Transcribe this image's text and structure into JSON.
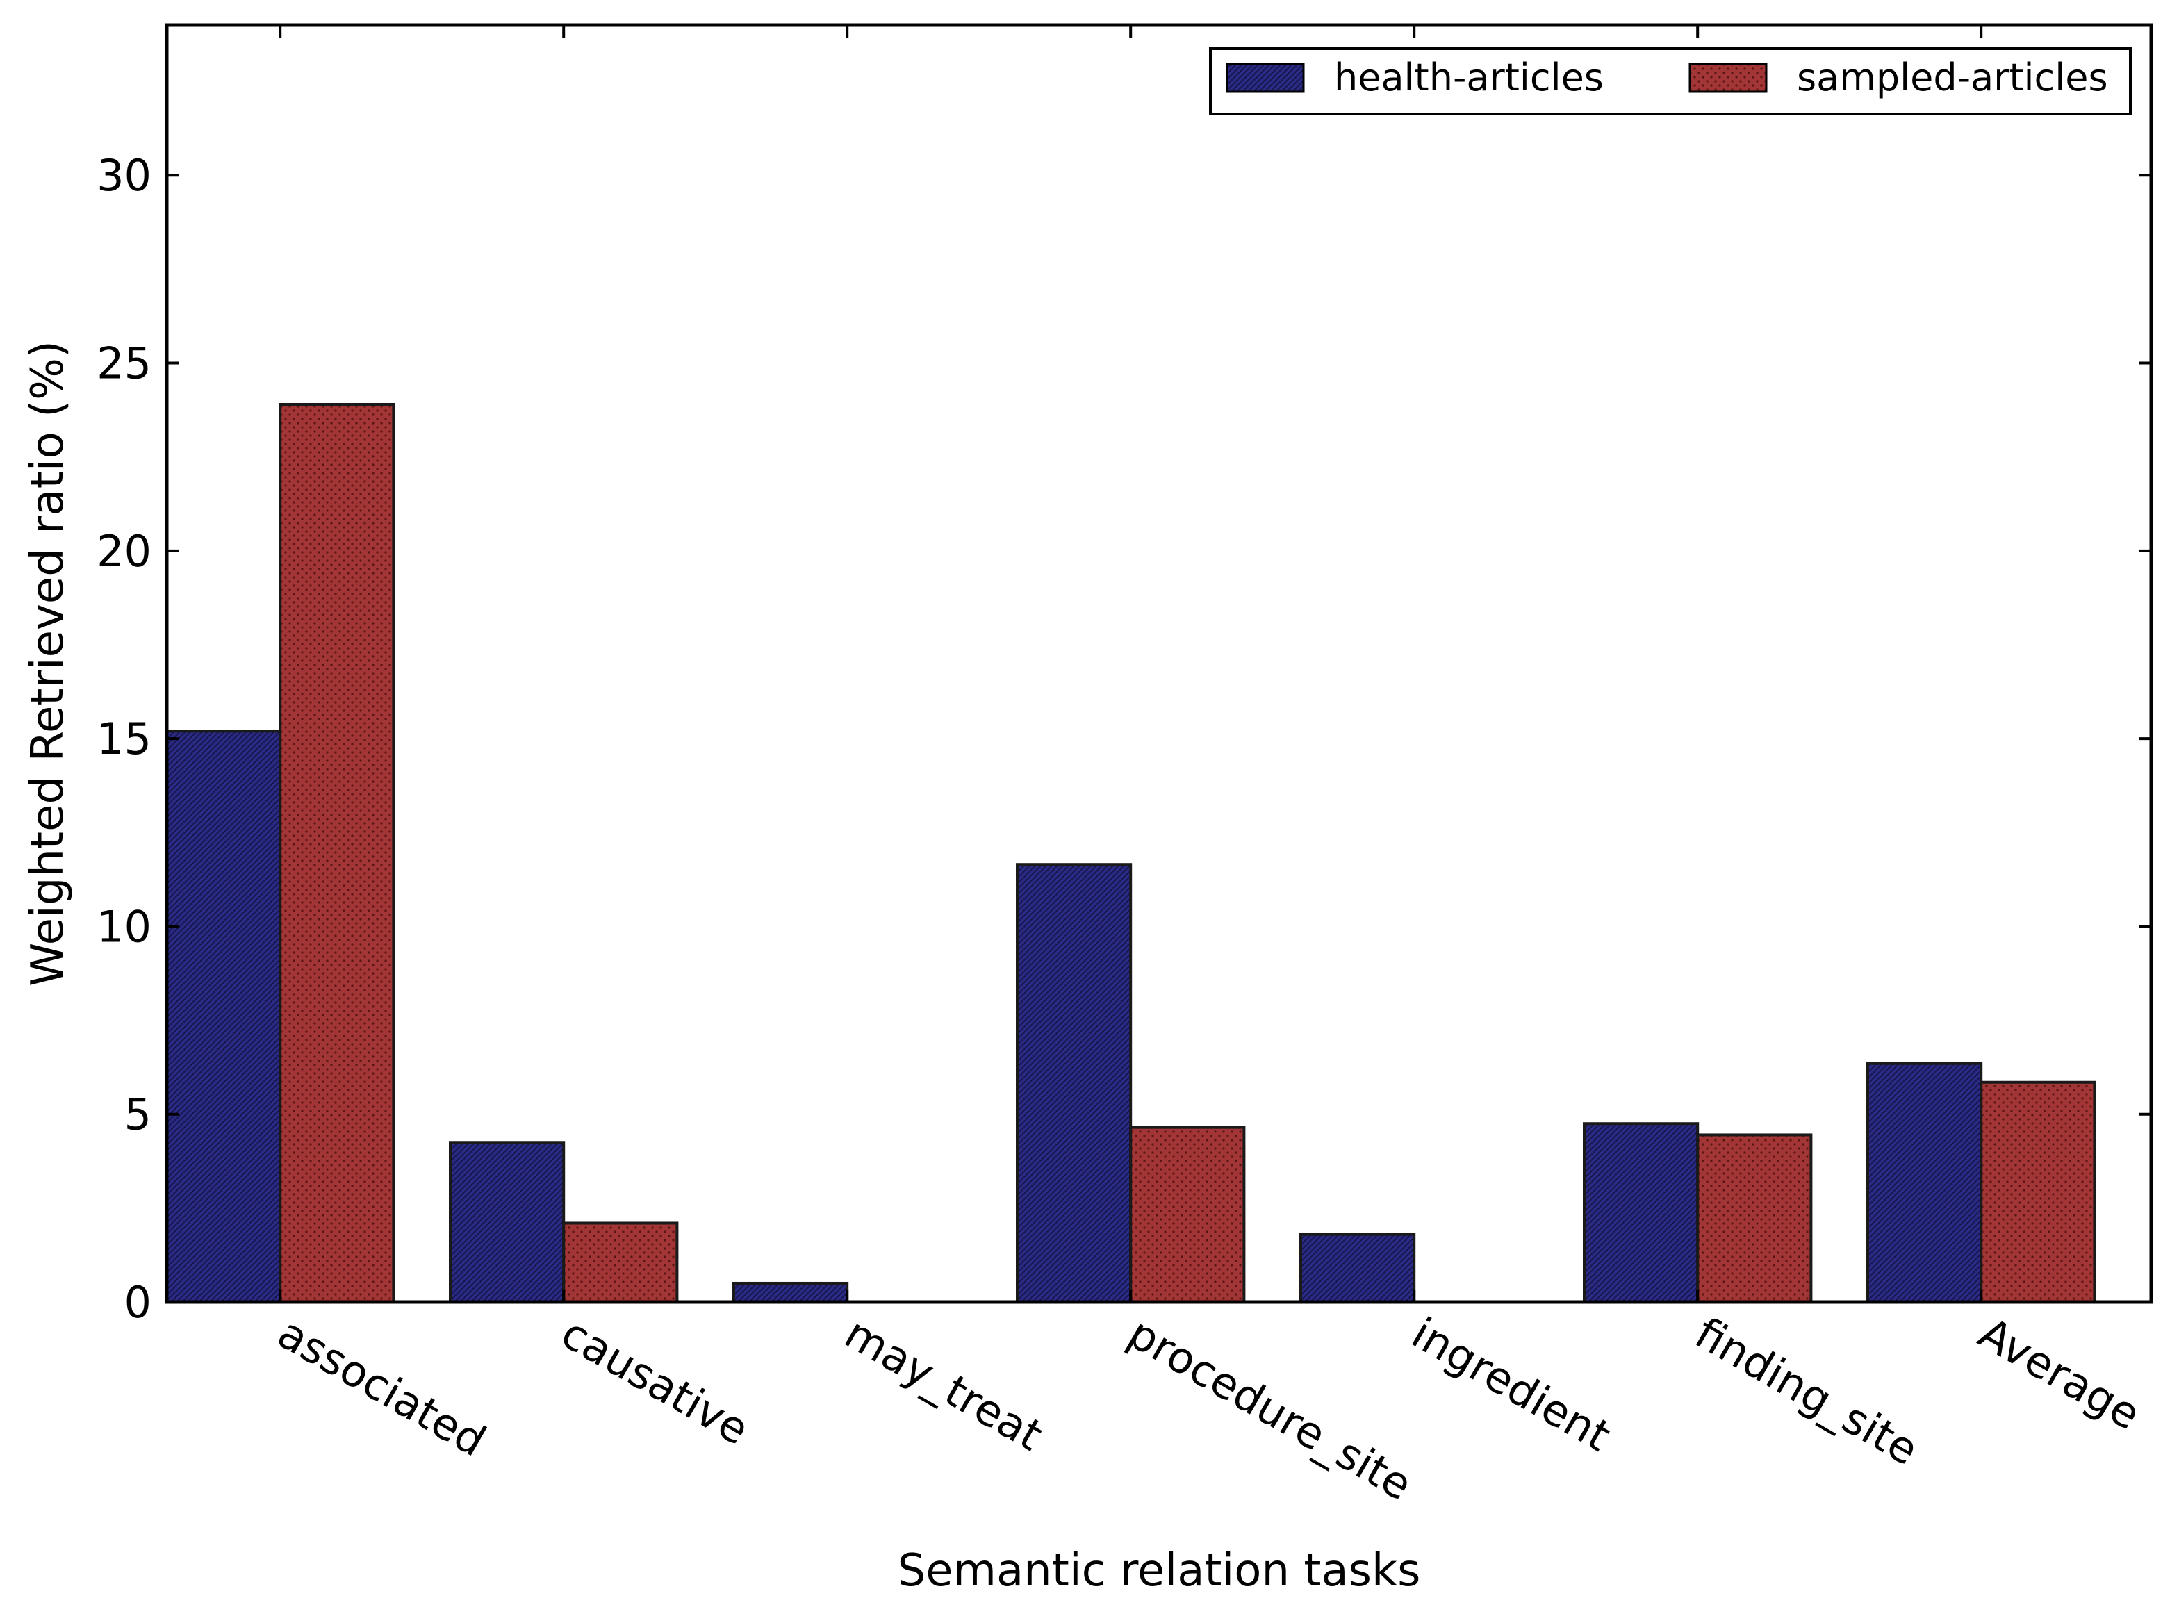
{
  "chart_data": {
    "type": "bar",
    "xlabel": "Semantic relation tasks",
    "ylabel": "Weighted Retrieved ratio (%)",
    "ylim": [
      0,
      34
    ],
    "yticks": [
      0,
      5,
      10,
      15,
      20,
      25,
      30
    ],
    "ytick_labels": [
      "0",
      "5",
      "10",
      "15",
      "20",
      "25",
      "30"
    ],
    "categories": [
      "associated",
      "causative",
      "may_treat",
      "procedure_site",
      "ingredient",
      "finding_site",
      "Average"
    ],
    "series": [
      {
        "name": "health-articles",
        "color": "#2b2b86",
        "pattern": "diagonal-hatch",
        "values": [
          15.2,
          4.25,
          0.5,
          11.65,
          1.8,
          4.75,
          6.35
        ]
      },
      {
        "name": "sampled-articles",
        "color": "#a23535",
        "pattern": "dots",
        "values": [
          23.9,
          2.1,
          0.0,
          4.65,
          0.0,
          4.45,
          5.85
        ]
      }
    ],
    "legend_position": "top-right",
    "grid": false
  }
}
